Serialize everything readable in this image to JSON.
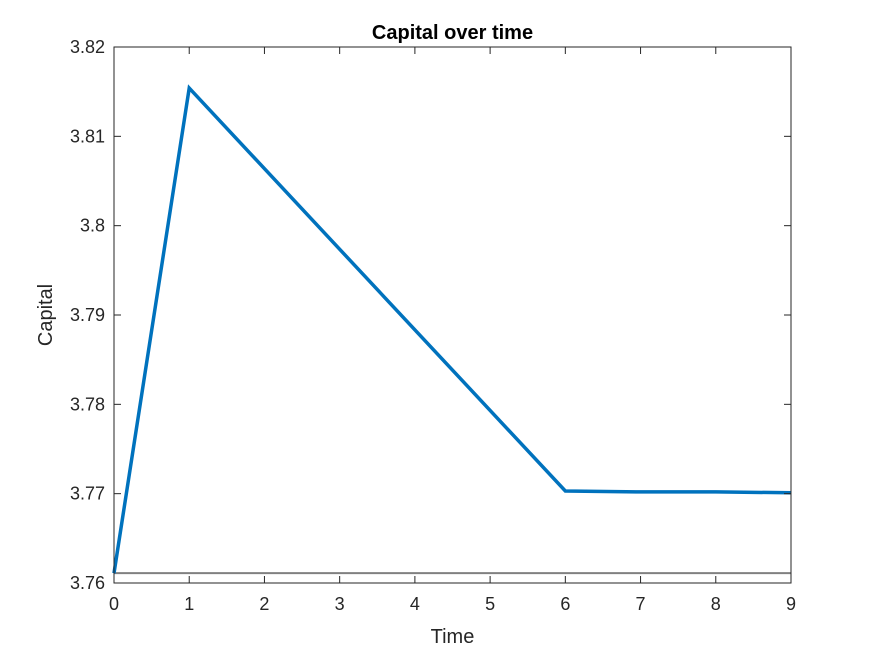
{
  "chart_data": {
    "type": "line",
    "title": "Capital over time",
    "xlabel": "Time",
    "ylabel": "Capital",
    "xlim": [
      0,
      9
    ],
    "ylim": [
      3.76,
      3.82
    ],
    "xticks": [
      0,
      1,
      2,
      3,
      4,
      5,
      6,
      7,
      8,
      9
    ],
    "xtick_labels": [
      "0",
      "1",
      "2",
      "3",
      "4",
      "5",
      "6",
      "7",
      "8",
      "9"
    ],
    "yticks": [
      3.76,
      3.77,
      3.78,
      3.79,
      3.8,
      3.81,
      3.82
    ],
    "ytick_labels": [
      "3.76",
      "3.77",
      "3.78",
      "3.79",
      "3.8",
      "3.81",
      "3.82"
    ],
    "grid": false,
    "legend": "none",
    "series": [
      {
        "x": [
          0,
          1,
          6,
          7,
          8,
          9
        ],
        "y": [
          3.7611,
          3.8154,
          3.7703,
          3.7702,
          3.7702,
          3.7701
        ],
        "color": "#0072BD"
      },
      {
        "x": [
          0,
          9
        ],
        "y": [
          3.7611,
          3.7611
        ],
        "color": "#808080"
      }
    ]
  }
}
